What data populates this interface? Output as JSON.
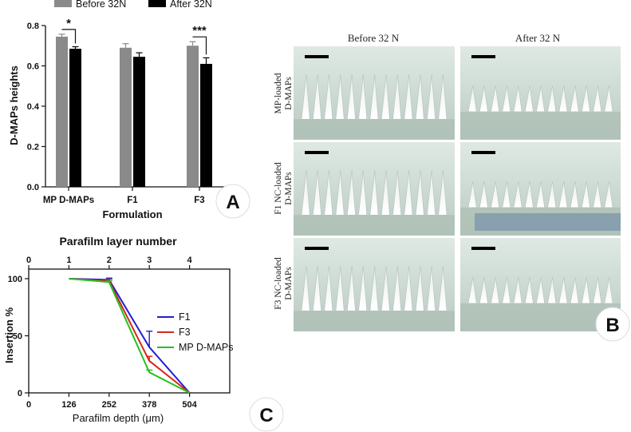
{
  "chart_data": [
    {
      "panel": "A",
      "type": "bar",
      "categories": [
        "MP D-MAPs",
        "F1",
        "F3"
      ],
      "series": [
        {
          "name": "Before 32N",
          "color": "#8a8a8a",
          "values": [
            0.745,
            0.69,
            0.7
          ],
          "errors": [
            0.012,
            0.02,
            0.02
          ]
        },
        {
          "name": "After 32N",
          "color": "#000000",
          "values": [
            0.685,
            0.645,
            0.61
          ],
          "errors": [
            0.01,
            0.02,
            0.03
          ]
        }
      ],
      "xlabel": "Formulation",
      "ylabel": "D-MAPs heights",
      "ylim": [
        0,
        0.8
      ],
      "yticks": [
        "0.0",
        "0.2",
        "0.4",
        "0.6",
        "0.8"
      ],
      "significance": [
        {
          "category": "MP D-MAPs",
          "label": "*"
        },
        {
          "category": "F3",
          "label": "***"
        }
      ],
      "legend_position": "top"
    },
    {
      "panel": "C",
      "type": "line",
      "x": [
        126,
        252,
        378,
        504
      ],
      "series": [
        {
          "name": "F1",
          "color": "#1f1fd0",
          "values": [
            100,
            99,
            40,
            0
          ],
          "errors": [
            0,
            1.5,
            14,
            0
          ]
        },
        {
          "name": "F3",
          "color": "#d8261c",
          "values": [
            100,
            98,
            28,
            0
          ],
          "errors": [
            0,
            1.5,
            4,
            0
          ]
        },
        {
          "name": "MP D-MAPs",
          "color": "#22c21f",
          "values": [
            100,
            97,
            18,
            0
          ],
          "errors": [
            0,
            1,
            2,
            0
          ]
        }
      ],
      "xlabel": "Parafilm depth (μm)",
      "x2label": "Parafilm layer number",
      "ylabel": "Insertion %",
      "xlim": [
        0,
        630
      ],
      "ylim": [
        0,
        100
      ],
      "xticks": [
        "0",
        "126",
        "252",
        "378",
        "504"
      ],
      "x2ticks": [
        "0",
        "1",
        "2",
        "3",
        "4"
      ],
      "yticks": [
        "0",
        "50",
        "100"
      ],
      "legend_position": "right"
    }
  ],
  "panel_b": {
    "column_headers": [
      "Before 32 N",
      "After 32 N"
    ],
    "row_labels": [
      [
        "MP-loaded",
        "D-MAPs"
      ],
      [
        "F1 NC-loaded",
        "D-MAPs"
      ],
      [
        "F3 NC-loaded",
        "D-MAPs"
      ]
    ]
  },
  "panel_labels": {
    "a": "A",
    "b": "B",
    "c": "C"
  }
}
